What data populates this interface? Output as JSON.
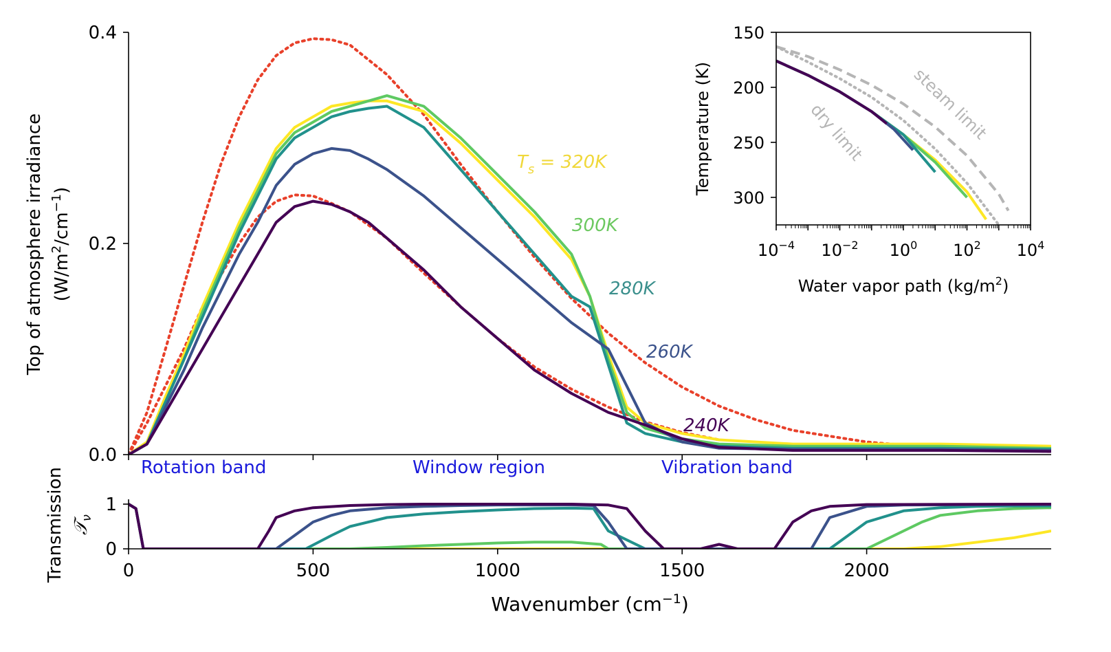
{
  "chart_data": [
    {
      "type": "line",
      "panel": "main",
      "ylabel_line1": "Top of atmosphere irradiance",
      "ylabel_line2_pre": "(W/m",
      "ylabel_line2_mid": "/cm",
      "ylabel_line2_post": ")",
      "ylabel_sup1": "2",
      "ylabel_sup2": "−1",
      "xlim": [
        0,
        2500
      ],
      "ylim": [
        0,
        0.4
      ],
      "yticks": [
        "0.0",
        "0.2",
        "0.4"
      ],
      "xticks": [
        0,
        500,
        1000,
        1500,
        2000
      ],
      "region_labels": [
        "Rotation band",
        "Window region",
        "Vibration band"
      ],
      "series": [
        {
          "name": "240K",
          "color": "#440154",
          "x": [
            0,
            50,
            100,
            150,
            200,
            250,
            300,
            350,
            400,
            450,
            500,
            550,
            600,
            650,
            700,
            800,
            900,
            1000,
            1100,
            1200,
            1300,
            1400,
            1500,
            1600,
            1800,
            2000,
            2200,
            2500
          ],
          "y": [
            0,
            0.01,
            0.04,
            0.07,
            0.1,
            0.13,
            0.16,
            0.19,
            0.22,
            0.235,
            0.24,
            0.237,
            0.23,
            0.22,
            0.205,
            0.175,
            0.14,
            0.11,
            0.08,
            0.058,
            0.04,
            0.028,
            0.015,
            0.007,
            0.004,
            0.004,
            0.004,
            0.003
          ]
        },
        {
          "name": "260K",
          "color": "#3b528b",
          "x": [
            0,
            50,
            100,
            150,
            200,
            250,
            300,
            350,
            400,
            450,
            500,
            550,
            600,
            650,
            700,
            800,
            900,
            1000,
            1100,
            1200,
            1300,
            1400,
            1500,
            1600,
            1800,
            2000,
            2200,
            2500
          ],
          "y": [
            0,
            0.01,
            0.045,
            0.08,
            0.12,
            0.155,
            0.19,
            0.22,
            0.255,
            0.275,
            0.285,
            0.29,
            0.288,
            0.28,
            0.27,
            0.245,
            0.215,
            0.185,
            0.155,
            0.125,
            0.1,
            0.03,
            0.012,
            0.006,
            0.005,
            0.005,
            0.005,
            0.004
          ]
        },
        {
          "name": "280K",
          "color": "#21918c",
          "x": [
            0,
            50,
            100,
            150,
            200,
            250,
            300,
            350,
            400,
            450,
            500,
            550,
            600,
            650,
            700,
            800,
            900,
            1000,
            1100,
            1200,
            1250,
            1300,
            1350,
            1400,
            1500,
            1600,
            1800,
            2000,
            2200,
            2500
          ],
          "y": [
            0,
            0.01,
            0.05,
            0.09,
            0.13,
            0.17,
            0.21,
            0.245,
            0.28,
            0.3,
            0.31,
            0.32,
            0.325,
            0.328,
            0.33,
            0.31,
            0.27,
            0.23,
            0.19,
            0.15,
            0.14,
            0.085,
            0.03,
            0.02,
            0.012,
            0.008,
            0.006,
            0.006,
            0.006,
            0.005
          ]
        },
        {
          "name": "300K",
          "color": "#5ec962",
          "x": [
            0,
            50,
            100,
            150,
            200,
            250,
            300,
            350,
            400,
            450,
            500,
            550,
            600,
            650,
            700,
            800,
            900,
            1000,
            1100,
            1200,
            1250,
            1300,
            1350,
            1400,
            1500,
            1600,
            1800,
            2000,
            2200,
            2500
          ],
          "y": [
            0,
            0.01,
            0.05,
            0.09,
            0.135,
            0.175,
            0.215,
            0.25,
            0.285,
            0.305,
            0.315,
            0.325,
            0.33,
            0.335,
            0.34,
            0.33,
            0.3,
            0.265,
            0.23,
            0.19,
            0.15,
            0.09,
            0.04,
            0.025,
            0.015,
            0.01,
            0.008,
            0.008,
            0.008,
            0.006
          ]
        },
        {
          "name": "320K",
          "color": "#fde725",
          "x": [
            0,
            50,
            100,
            150,
            200,
            250,
            300,
            350,
            400,
            450,
            500,
            550,
            600,
            650,
            700,
            800,
            900,
            1000,
            1100,
            1200,
            1250,
            1300,
            1350,
            1400,
            1500,
            1600,
            1800,
            2000,
            2200,
            2500
          ],
          "y": [
            0,
            0.012,
            0.055,
            0.095,
            0.14,
            0.18,
            0.22,
            0.255,
            0.29,
            0.31,
            0.32,
            0.33,
            0.333,
            0.335,
            0.335,
            0.325,
            0.295,
            0.26,
            0.225,
            0.185,
            0.15,
            0.095,
            0.045,
            0.03,
            0.02,
            0.014,
            0.01,
            0.01,
            0.01,
            0.008
          ]
        }
      ],
      "reference_curves": [
        {
          "color": "#e8402a",
          "style": "dotted",
          "x": [
            0,
            50,
            100,
            150,
            200,
            250,
            300,
            350,
            400,
            450,
            500,
            550,
            600,
            700,
            800,
            900,
            1000,
            1100,
            1200,
            1300,
            1400,
            1500,
            1600,
            1700,
            1800,
            2000,
            2200,
            2500
          ],
          "y": [
            0,
            0.04,
            0.1,
            0.16,
            0.22,
            0.275,
            0.32,
            0.355,
            0.378,
            0.39,
            0.394,
            0.393,
            0.388,
            0.36,
            0.322,
            0.275,
            0.23,
            0.187,
            0.148,
            0.115,
            0.087,
            0.064,
            0.046,
            0.033,
            0.023,
            0.012,
            0.006,
            0.003
          ]
        },
        {
          "color": "#e8402a",
          "style": "dotted",
          "x": [
            0,
            50,
            100,
            150,
            200,
            250,
            300,
            350,
            400,
            450,
            500,
            550,
            600,
            700,
            800,
            900,
            1000,
            1100,
            1200,
            1300,
            1400,
            1500,
            1600
          ],
          "y": [
            0,
            0.03,
            0.065,
            0.1,
            0.14,
            0.17,
            0.2,
            0.225,
            0.24,
            0.246,
            0.245,
            0.238,
            0.23,
            0.205,
            0.172,
            0.14,
            0.11,
            0.083,
            0.062,
            0.045,
            0.031,
            0.021,
            0.014
          ]
        }
      ],
      "annotations": [
        {
          "text": "T",
          "sub": "s",
          "rest": " = 320K",
          "color": "#f0d83a"
        },
        {
          "text": "300K",
          "color": "#6cc860"
        },
        {
          "text": "280K",
          "color": "#3a8f8c"
        },
        {
          "text": "260K",
          "color": "#3b528b"
        },
        {
          "text": "240K",
          "color": "#440154"
        }
      ]
    },
    {
      "type": "line",
      "panel": "transmission",
      "ylabel_line1": "Transmission",
      "ylabel_line2": "𝒯",
      "ylabel_line2_sub": "ν",
      "xlabel_pre": "Wavenumber (cm",
      "xlabel_sup": "−1",
      "xlabel_post": ")",
      "xlim": [
        0,
        2500
      ],
      "ylim": [
        0,
        1
      ],
      "yticks": [
        "0",
        "1"
      ],
      "xticks": [
        "0",
        "500",
        "1000",
        "1500",
        "2000"
      ],
      "series": [
        {
          "name": "320K",
          "color": "#fde725",
          "x": [
            0,
            20,
            40,
            2100,
            2200,
            2300,
            2400,
            2500
          ],
          "y": [
            1,
            0.9,
            0,
            0,
            0.05,
            0.15,
            0.25,
            0.4
          ]
        },
        {
          "name": "300K",
          "color": "#5ec962",
          "x": [
            0,
            20,
            40,
            600,
            700,
            800,
            900,
            1000,
            1100,
            1200,
            1280,
            1300,
            2000,
            2100,
            2150,
            2200,
            2300,
            2400,
            2500
          ],
          "y": [
            1,
            0.9,
            0,
            0,
            0.03,
            0.07,
            0.1,
            0.13,
            0.15,
            0.15,
            0.1,
            0,
            0,
            0.4,
            0.6,
            0.75,
            0.85,
            0.9,
            0.92
          ]
        },
        {
          "name": "280K",
          "color": "#21918c",
          "x": [
            0,
            20,
            40,
            480,
            550,
            600,
            700,
            800,
            900,
            1000,
            1100,
            1200,
            1260,
            1300,
            1400,
            1900,
            2000,
            2100,
            2200,
            2300,
            2400,
            2500
          ],
          "y": [
            1,
            0.9,
            0,
            0,
            0.3,
            0.5,
            0.7,
            0.78,
            0.83,
            0.87,
            0.9,
            0.91,
            0.9,
            0.4,
            0,
            0,
            0.6,
            0.85,
            0.92,
            0.95,
            0.96,
            0.96
          ]
        },
        {
          "name": "260K",
          "color": "#3b528b",
          "x": [
            0,
            20,
            40,
            400,
            450,
            500,
            550,
            600,
            700,
            800,
            900,
            1000,
            1100,
            1200,
            1260,
            1300,
            1350,
            1850,
            1900,
            2000,
            2100,
            2500
          ],
          "y": [
            1,
            0.9,
            0,
            0,
            0.3,
            0.6,
            0.75,
            0.85,
            0.92,
            0.95,
            0.97,
            0.98,
            0.98,
            0.98,
            0.97,
            0.6,
            0,
            0,
            0.7,
            0.95,
            0.98,
            0.99
          ]
        },
        {
          "name": "240K",
          "color": "#440154",
          "x": [
            0,
            20,
            40,
            350,
            380,
            400,
            450,
            500,
            600,
            700,
            800,
            900,
            1000,
            1100,
            1200,
            1300,
            1350,
            1400,
            1450,
            1500,
            1550,
            1600,
            1650,
            1750,
            1800,
            1850,
            1900,
            2000,
            2500
          ],
          "y": [
            1,
            0.9,
            0,
            0,
            0.4,
            0.7,
            0.85,
            0.92,
            0.97,
            0.99,
            1,
            1,
            1,
            1,
            1,
            0.98,
            0.9,
            0.4,
            0,
            0,
            0,
            0.1,
            0,
            0,
            0.6,
            0.85,
            0.95,
            0.99,
            1
          ]
        }
      ]
    },
    {
      "type": "line",
      "panel": "inset",
      "xlabel_pre": "Water vapor path (kg/m",
      "xlabel_sup": "2",
      "xlabel_post": ")",
      "ylabel": "Temperature (K)",
      "xscale": "log",
      "xlim": [
        0.0001,
        10000
      ],
      "ylim": [
        325,
        150
      ],
      "xtick_base": "10",
      "xtick_exps": [
        "−4",
        "−2",
        "0",
        "2",
        "4"
      ],
      "xtick_values": [
        0.0001,
        0.01,
        1,
        100,
        10000
      ],
      "yticks": [
        "150",
        "200",
        "250",
        "300"
      ],
      "ytick_values": [
        150,
        200,
        250,
        300
      ],
      "dry_limit": {
        "label": "dry limit",
        "x": [
          0.0001,
          0.001,
          0.01,
          0.1,
          1,
          10,
          100,
          1000
        ],
        "y": [
          163,
          177,
          192,
          209,
          230,
          256,
          287,
          325
        ]
      },
      "steam_limit": {
        "label": "steam limit",
        "x": [
          0.0001,
          0.001,
          0.01,
          0.1,
          1,
          10,
          100,
          1000,
          2000
        ],
        "y": [
          163,
          172,
          184,
          198,
          215,
          236,
          262,
          297,
          312
        ]
      },
      "series": [
        {
          "name": "240K",
          "color": "#440154",
          "x": [
            0.0001,
            0.001,
            0.01,
            0.1,
            0.3
          ],
          "y": [
            176,
            189,
            204,
            222,
            233
          ]
        },
        {
          "name": "260K",
          "color": "#3b528b",
          "x": [
            0.0001,
            0.001,
            0.01,
            0.1,
            0.5,
            2
          ],
          "y": [
            176,
            189,
            204,
            222,
            238,
            257
          ]
        },
        {
          "name": "280K",
          "color": "#21918c",
          "x": [
            0.0001,
            0.001,
            0.01,
            0.1,
            1,
            10
          ],
          "y": [
            176,
            189,
            204,
            222,
            243,
            277
          ]
        },
        {
          "name": "300K",
          "color": "#5ec962",
          "x": [
            0.0001,
            0.001,
            0.01,
            0.1,
            1,
            10,
            100
          ],
          "y": [
            176,
            189,
            204,
            222,
            243,
            268,
            300
          ]
        },
        {
          "name": "320K",
          "color": "#fde725",
          "x": [
            0.0001,
            0.001,
            0.01,
            0.1,
            1,
            10,
            100,
            400
          ],
          "y": [
            176,
            189,
            204,
            222,
            243,
            266,
            295,
            320
          ]
        }
      ]
    }
  ]
}
